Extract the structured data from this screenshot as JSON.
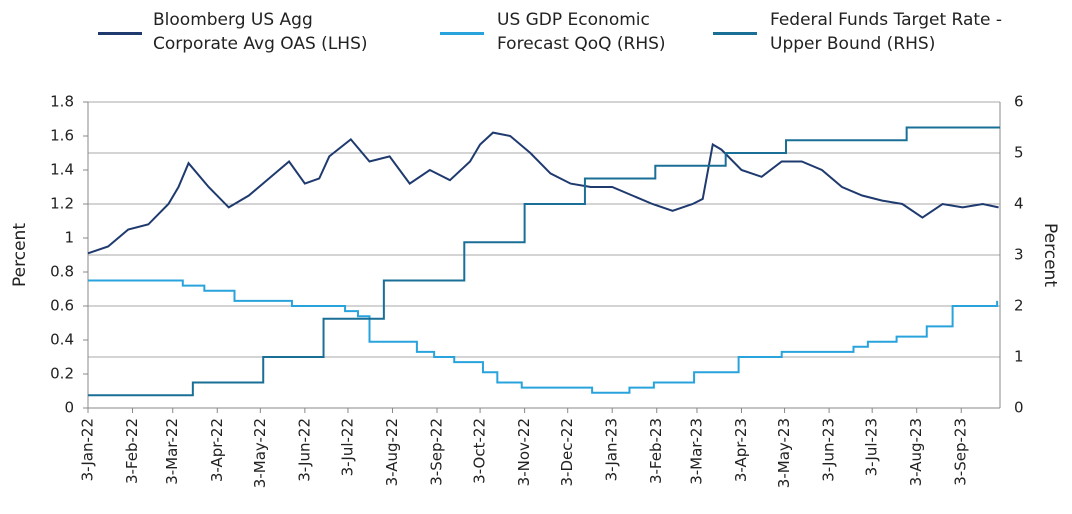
{
  "chart_data": {
    "type": "line",
    "y_label": "Percent",
    "y2_label": "Percent",
    "xlim": [
      "3-Jan-22",
      "30-Sep-23"
    ],
    "xticks": [
      "3-Jan-22",
      "3-Feb-22",
      "3-Mar-22",
      "3-Apr-22",
      "3-May-22",
      "3-Jun-22",
      "3-Jul-22",
      "3-Aug-22",
      "3-Sep-22",
      "3-Oct-22",
      "3-Nov-22",
      "3-Dec-22",
      "3-Jan-23",
      "3-Feb-23",
      "3-Mar-23",
      "3-Apr-23",
      "3-May-23",
      "3-Jun-23",
      "3-Jul-23",
      "3-Aug-23",
      "3-Sep-23"
    ],
    "ylim": [
      0,
      1.8
    ],
    "yticks": [
      0,
      0.2,
      0.4,
      0.6,
      0.8,
      1,
      1.2,
      1.4,
      1.6,
      1.8
    ],
    "y2lim": [
      0,
      6
    ],
    "y2ticks": [
      0,
      1,
      2,
      3,
      4,
      5,
      6
    ],
    "grid": "y2",
    "series": [
      {
        "name": "Bloomberg US Agg Corporate Avg OAS (LHS)",
        "color": "#1f3a6e",
        "axis": "y",
        "step": false,
        "x": [
          "3-Jan-22",
          "17-Jan-22",
          "31-Jan-22",
          "14-Feb-22",
          "28-Feb-22",
          "7-Mar-22",
          "14-Mar-22",
          "28-Mar-22",
          "11-Apr-22",
          "25-Apr-22",
          "9-May-22",
          "23-May-22",
          "3-Jun-22",
          "13-Jun-22",
          "20-Jun-22",
          "5-Jul-22",
          "18-Jul-22",
          "1-Aug-22",
          "15-Aug-22",
          "29-Aug-22",
          "12-Sep-22",
          "26-Sep-22",
          "3-Oct-22",
          "12-Oct-22",
          "24-Oct-22",
          "7-Nov-22",
          "21-Nov-22",
          "5-Dec-22",
          "19-Dec-22",
          "3-Jan-23",
          "17-Jan-23",
          "31-Jan-23",
          "14-Feb-23",
          "28-Feb-23",
          "7-Mar-23",
          "14-Mar-23",
          "20-Mar-23",
          "3-Apr-23",
          "17-Apr-23",
          "1-May-23",
          "15-May-23",
          "29-May-23",
          "12-Jun-23",
          "26-Jun-23",
          "10-Jul-23",
          "24-Jul-23",
          "7-Aug-23",
          "21-Aug-23",
          "4-Sep-23",
          "18-Sep-23",
          "29-Sep-23"
        ],
        "values": [
          0.91,
          0.95,
          1.05,
          1.08,
          1.2,
          1.3,
          1.44,
          1.3,
          1.18,
          1.25,
          1.35,
          1.45,
          1.32,
          1.35,
          1.48,
          1.58,
          1.45,
          1.48,
          1.32,
          1.4,
          1.34,
          1.45,
          1.55,
          1.62,
          1.6,
          1.5,
          1.38,
          1.32,
          1.3,
          1.3,
          1.25,
          1.2,
          1.16,
          1.2,
          1.23,
          1.55,
          1.52,
          1.4,
          1.36,
          1.45,
          1.45,
          1.4,
          1.3,
          1.25,
          1.22,
          1.2,
          1.12,
          1.2,
          1.18,
          1.2,
          1.18
        ]
      },
      {
        "name": "US GDP Economic Forecast QoQ (RHS)",
        "color": "#29a3dc",
        "axis": "y2",
        "step": true,
        "x": [
          "3-Jan-22",
          "10-Mar-22",
          "25-Mar-22",
          "15-Apr-22",
          "25-May-22",
          "1-Jul-22",
          "10-Jul-22",
          "18-Jul-22",
          "20-Aug-22",
          "1-Sep-22",
          "15-Sep-22",
          "5-Oct-22",
          "15-Oct-22",
          "1-Nov-22",
          "20-Dec-22",
          "15-Jan-23",
          "1-Feb-23",
          "1-Mar-23",
          "1-Apr-23",
          "1-May-23",
          "20-Jun-23",
          "30-Jun-23",
          "20-Jul-23",
          "10-Aug-23",
          "28-Aug-23",
          "28-Sep-23"
        ],
        "values": [
          2.5,
          2.4,
          2.3,
          2.1,
          2.0,
          1.9,
          1.8,
          1.3,
          1.1,
          1.0,
          0.9,
          0.7,
          0.5,
          0.4,
          0.3,
          0.4,
          0.5,
          0.7,
          1.0,
          1.1,
          1.2,
          1.3,
          1.4,
          1.6,
          2.0,
          2.1
        ]
      },
      {
        "name": "Federal Funds Target Rate - Upper Bound (RHS)",
        "color": "#1a6f96",
        "axis": "y2",
        "step": true,
        "x": [
          "3-Jan-22",
          "17-Mar-22",
          "5-May-22",
          "16-Jun-22",
          "28-Jul-22",
          "22-Sep-22",
          "3-Nov-22",
          "15-Dec-22",
          "2-Feb-23",
          "23-Mar-23",
          "4-May-23",
          "27-Jul-23",
          "30-Sep-23"
        ],
        "values": [
          0.25,
          0.5,
          1.0,
          1.75,
          2.5,
          3.25,
          4.0,
          4.5,
          4.75,
          5.0,
          5.25,
          5.5,
          5.5
        ]
      }
    ]
  }
}
